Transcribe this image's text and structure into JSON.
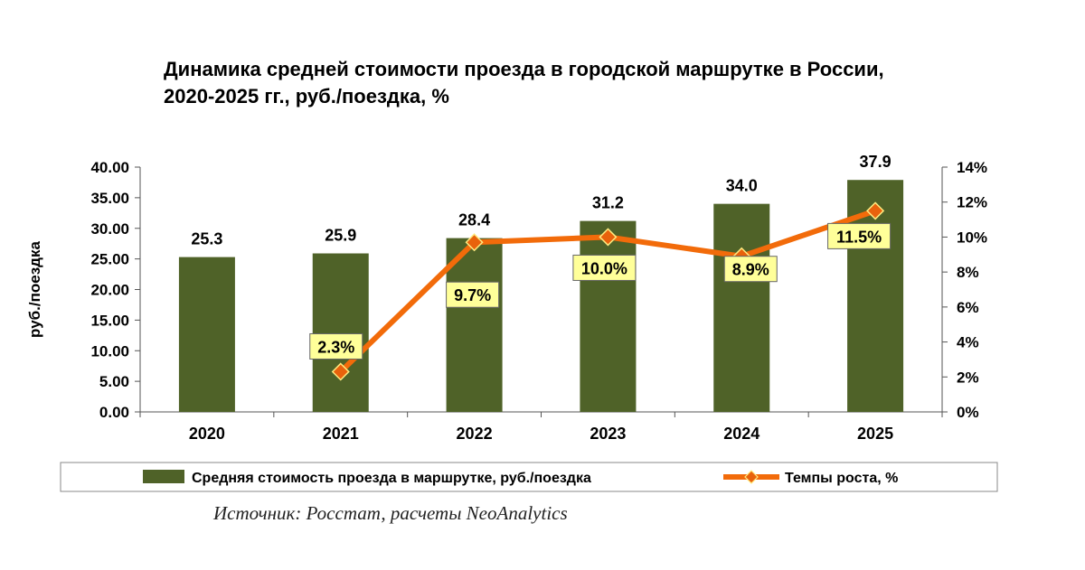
{
  "chart_data": {
    "type": "bar+line",
    "title_lines": [
      "Динамика средней стоимости проезда в городской маршрутке в России,",
      "2020-2025 гг., руб./поездка, %"
    ],
    "categories": [
      "2020",
      "2021",
      "2022",
      "2023",
      "2024",
      "2025"
    ],
    "bar_series": {
      "name": "Средняя стоимость проезда в маршрутке, руб./поездка",
      "values": [
        25.3,
        25.9,
        28.4,
        31.2,
        34.0,
        37.9
      ],
      "labels": [
        "25.3",
        "25.9",
        "28.4",
        "31.2",
        "34.0",
        "37.9"
      ],
      "color": "#4F6228"
    },
    "line_series": {
      "name": "Темпы роста, %",
      "values": [
        null,
        2.3,
        9.7,
        10.0,
        8.9,
        11.5
      ],
      "labels": [
        "",
        "2.3%",
        "9.7%",
        "10.0%",
        "8.9%",
        "11.5%"
      ],
      "color": "#F26B0A",
      "marker_color": "#E8620C",
      "label_bg": "#FFFF99"
    },
    "y_left": {
      "label": "руб./поездка",
      "min": 0,
      "max": 40,
      "ticks": [
        0,
        5,
        10,
        15,
        20,
        25,
        30,
        35,
        40
      ],
      "tick_labels": [
        "0.00",
        "5.00",
        "10.00",
        "15.00",
        "20.00",
        "25.00",
        "30.00",
        "35.00",
        "40.00"
      ]
    },
    "y_right": {
      "min": 0,
      "max": 14,
      "ticks": [
        0,
        2,
        4,
        6,
        8,
        10,
        12,
        14
      ],
      "tick_labels": [
        "0%",
        "2%",
        "4%",
        "6%",
        "8%",
        "10%",
        "12%",
        "14%"
      ]
    },
    "legend_position": "bottom"
  },
  "source": "Источник: Росстат, расчеты NeoAnalytics"
}
